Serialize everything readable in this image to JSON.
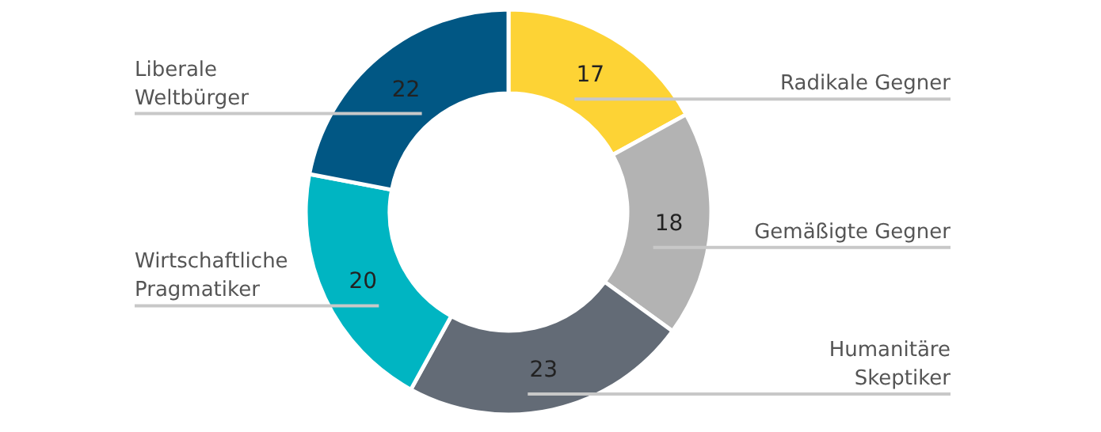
{
  "chart_data": {
    "type": "donut",
    "categories": [
      "Radikale Gegner",
      "Gemäßigte Gegner",
      "Humanitäre Skeptiker",
      "Wirtschaftliche Pragmatiker",
      "Liberale Weltbürger"
    ],
    "values": [
      17,
      18,
      23,
      20,
      22
    ],
    "colors": [
      "#fdd335",
      "#b3b3b3",
      "#636b76",
      "#00b5c2",
      "#015784"
    ],
    "data_labels": true,
    "legend": false
  }
}
